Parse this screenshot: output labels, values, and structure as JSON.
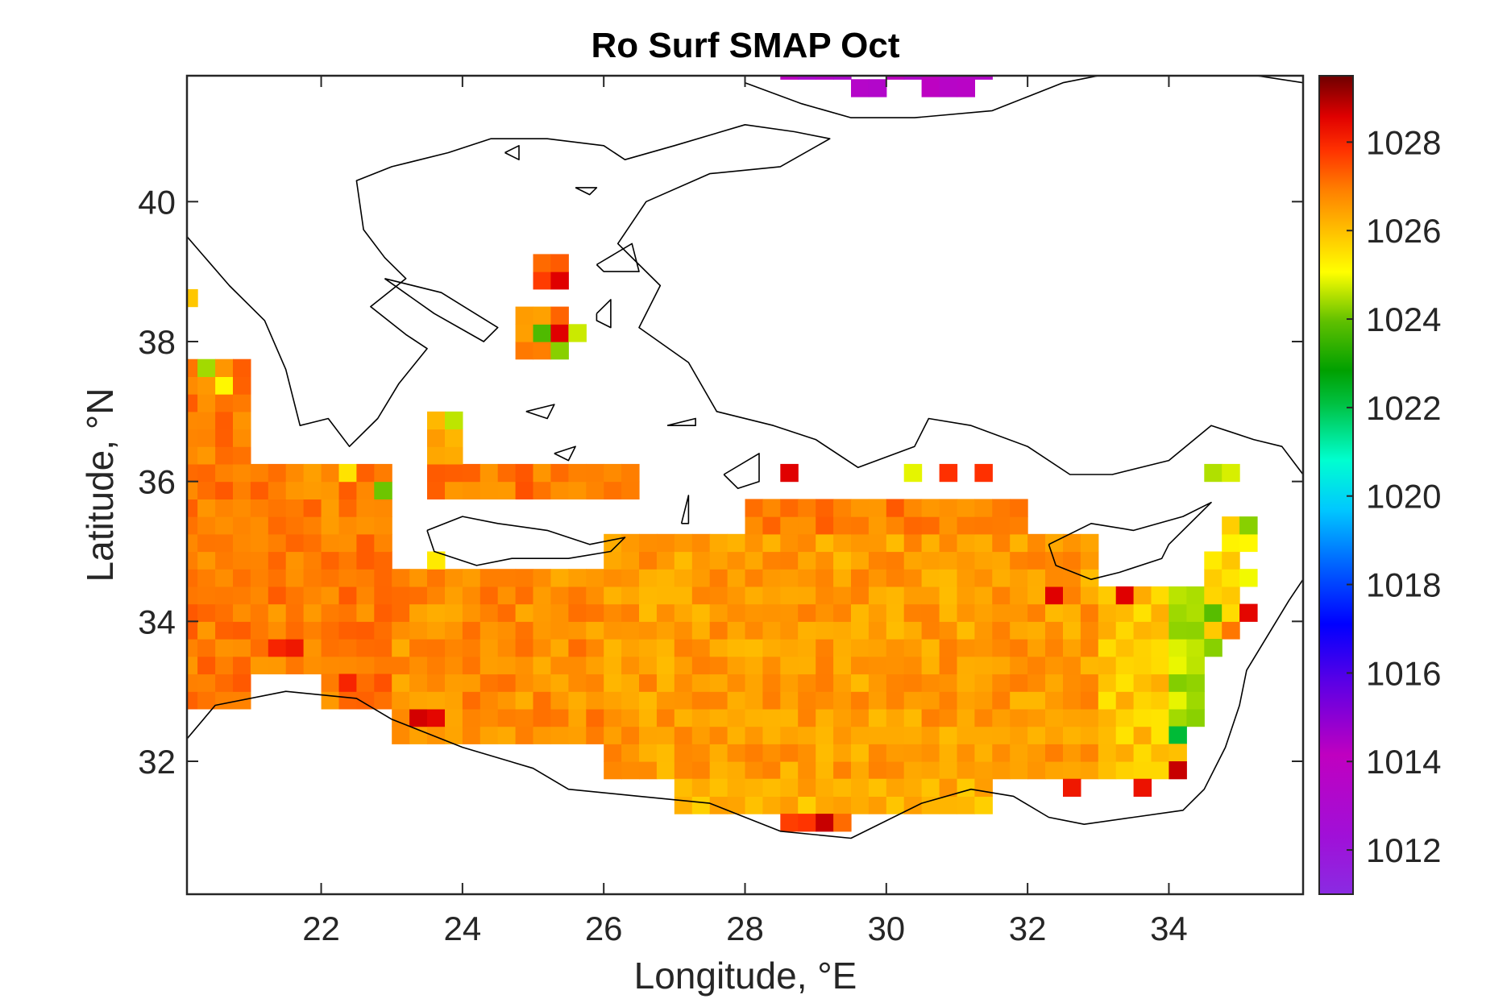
{
  "chart_data": {
    "type": "heatmap",
    "title": "Ro Surf SMAP Oct",
    "xlabel": "Longitude, °E",
    "ylabel": "Latitude, °N",
    "xlim": [
      20.1,
      35.9
    ],
    "ylim": [
      30.1,
      41.8
    ],
    "xticks": [
      "22",
      "24",
      "26",
      "28",
      "30",
      "32",
      "34"
    ],
    "xtick_values": [
      22,
      24,
      26,
      28,
      30,
      32,
      34
    ],
    "yticks": [
      "32",
      "34",
      "36",
      "38",
      "40"
    ],
    "ytick_values": [
      32,
      34,
      36,
      38,
      40
    ],
    "cell_size_deg": 0.25,
    "colorbar": {
      "min": 1011,
      "max": 1029.5,
      "colormap": "jet-like, purple→blue→cyan→green→yellow→orange→red→dark red",
      "ticks": [
        "1012",
        "1014",
        "1016",
        "1018",
        "1020",
        "1022",
        "1024",
        "1026",
        "1028"
      ],
      "tick_values": [
        1012,
        1014,
        1016,
        1018,
        1020,
        1022,
        1024,
        1026,
        1028
      ]
    },
    "typical_values": {
      "eastern_mediterranean_open_sea": 1026.8,
      "levantine_coast_near_34E": 1024.5,
      "black_sea_edge_top": 1013.5
    },
    "regions": [
      {
        "lon": [
          20.0,
          21.0
        ],
        "lat": [
          32.75,
          33.75
        ],
        "value": 1026.9
      },
      {
        "lon": [
          20.0,
          21.0
        ],
        "lat": [
          33.75,
          37.75
        ],
        "value": 1027.0
      },
      {
        "lon": [
          21.0,
          23.0
        ],
        "lat": [
          33.25,
          36.25
        ],
        "value": 1026.9
      },
      {
        "lon": [
          22.0,
          23.0
        ],
        "lat": [
          32.75,
          33.25
        ],
        "value": 1027.0
      },
      {
        "lon": [
          23.0,
          26.0
        ],
        "lat": [
          32.25,
          34.75
        ],
        "value": 1026.7
      },
      {
        "lon": [
          26.0,
          33.0
        ],
        "lat": [
          31.75,
          35.25
        ],
        "value": 1026.5
      },
      {
        "lon": [
          27.0,
          31.5
        ],
        "lat": [
          31.25,
          31.75
        ],
        "value": 1026.2
      },
      {
        "lon": [
          28.5,
          29.5
        ],
        "lat": [
          31.0,
          31.25
        ],
        "value": 1027.5
      },
      {
        "lon": [
          28.0,
          32.0
        ],
        "lat": [
          35.25,
          35.75
        ],
        "value": 1026.9
      },
      {
        "lon": [
          23.5,
          26.5
        ],
        "lat": [
          35.75,
          36.25
        ],
        "value": 1027.0
      },
      {
        "lon": [
          23.5,
          24.0
        ],
        "lat": [
          36.25,
          37.0
        ],
        "value": 1026.5
      },
      {
        "lon": [
          33.0,
          34.0
        ],
        "lat": [
          31.75,
          34.5
        ],
        "value": 1025.9
      },
      {
        "lon": [
          34.0,
          34.5
        ],
        "lat": [
          32.5,
          34.5
        ],
        "value": 1024.6
      },
      {
        "lon": [
          34.5,
          35.0
        ],
        "lat": [
          33.75,
          35.0
        ],
        "value": 1025.6
      },
      {
        "lon": [
          34.75,
          35.25
        ],
        "lat": [
          35.0,
          35.5
        ],
        "value": 1025.6
      },
      {
        "lon": [
          25.0,
          25.5
        ],
        "lat": [
          38.75,
          39.25
        ],
        "value": 1027.3
      },
      {
        "lon": [
          24.75,
          25.5
        ],
        "lat": [
          37.75,
          38.5
        ],
        "value": 1026.8
      },
      {
        "lon": [
          28.5,
          29.5
        ],
        "lat": [
          41.75,
          41.85
        ],
        "value": 1013.5
      },
      {
        "lon": [
          30.0,
          31.5
        ],
        "lat": [
          41.75,
          41.85
        ],
        "value": 1013.8
      },
      {
        "lon": [
          29.5,
          30.0
        ],
        "lat": [
          41.5,
          41.75
        ],
        "value": 1013.5
      },
      {
        "lon": [
          30.5,
          31.25
        ],
        "lat": [
          41.5,
          41.75
        ],
        "value": 1013.6
      }
    ],
    "spot_values": [
      {
        "lon": 34.0,
        "lat": 32.25,
        "value": 1022.2
      },
      {
        "lon": 34.0,
        "lat": 32.5,
        "value": 1024.4
      },
      {
        "lon": 34.0,
        "lat": 32.0,
        "value": 1026.0
      },
      {
        "lon": 34.0,
        "lat": 31.75,
        "value": 1028.8
      },
      {
        "lon": 34.5,
        "lat": 34.0,
        "value": 1023.8
      },
      {
        "lon": 34.5,
        "lat": 36.0,
        "value": 1024.5
      },
      {
        "lon": 34.75,
        "lat": 36.0,
        "value": 1024.8
      },
      {
        "lon": 35.0,
        "lat": 35.25,
        "value": 1024.2
      },
      {
        "lon": 35.0,
        "lat": 34.0,
        "value": 1028.5
      },
      {
        "lon": 34.75,
        "lat": 33.75,
        "value": 1027.0
      },
      {
        "lon": 20.25,
        "lat": 37.5,
        "value": 1024.4
      },
      {
        "lon": 20.5,
        "lat": 37.25,
        "value": 1025.2
      },
      {
        "lon": 22.75,
        "lat": 35.75,
        "value": 1024.0
      },
      {
        "lon": 22.25,
        "lat": 36.0,
        "value": 1025.5
      },
      {
        "lon": 23.75,
        "lat": 36.75,
        "value": 1024.6
      },
      {
        "lon": 23.25,
        "lat": 32.5,
        "value": 1028.7
      },
      {
        "lon": 23.5,
        "lat": 32.5,
        "value": 1028.5
      },
      {
        "lon": 21.25,
        "lat": 33.5,
        "value": 1028.0
      },
      {
        "lon": 21.5,
        "lat": 33.5,
        "value": 1028.2
      },
      {
        "lon": 22.25,
        "lat": 33.0,
        "value": 1028.0
      },
      {
        "lon": 23.5,
        "lat": 34.75,
        "value": 1025.4
      },
      {
        "lon": 25.0,
        "lat": 38.0,
        "value": 1023.7
      },
      {
        "lon": 25.5,
        "lat": 38.0,
        "value": 1024.7
      },
      {
        "lon": 25.25,
        "lat": 37.75,
        "value": 1024.2
      },
      {
        "lon": 25.25,
        "lat": 38.0,
        "value": 1028.6
      },
      {
        "lon": 25.25,
        "lat": 38.75,
        "value": 1028.6
      },
      {
        "lon": 20.0,
        "lat": 38.5,
        "value": 1025.9
      },
      {
        "lon": 28.5,
        "lat": 36.0,
        "value": 1028.6
      },
      {
        "lon": 29.0,
        "lat": 31.0,
        "value": 1028.8
      },
      {
        "lon": 30.25,
        "lat": 36.0,
        "value": 1024.9
      },
      {
        "lon": 30.75,
        "lat": 36.0,
        "value": 1027.8
      },
      {
        "lon": 31.25,
        "lat": 36.0,
        "value": 1027.8
      },
      {
        "lon": 32.25,
        "lat": 34.25,
        "value": 1028.6
      },
      {
        "lon": 33.25,
        "lat": 34.25,
        "value": 1028.6
      },
      {
        "lon": 32.5,
        "lat": 31.5,
        "value": 1028.2
      },
      {
        "lon": 33.5,
        "lat": 31.5,
        "value": 1028.3
      },
      {
        "lon": 35.0,
        "lat": 34.5,
        "value": 1025.0
      },
      {
        "lon": 34.5,
        "lat": 33.5,
        "value": 1024.2
      }
    ],
    "coastlines": [
      {
        "name": "libya-egypt-israel-lebanon-turkey",
        "points": [
          [
            20.0,
            32.2
          ],
          [
            20.5,
            32.8
          ],
          [
            21.5,
            33.0
          ],
          [
            22.5,
            32.9
          ],
          [
            23.0,
            32.6
          ],
          [
            24.0,
            32.2
          ],
          [
            25.0,
            31.9
          ],
          [
            25.5,
            31.6
          ],
          [
            26.5,
            31.5
          ],
          [
            27.5,
            31.4
          ],
          [
            28.5,
            31.0
          ],
          [
            29.5,
            30.9
          ],
          [
            30.5,
            31.4
          ],
          [
            31.2,
            31.6
          ],
          [
            31.8,
            31.5
          ],
          [
            32.3,
            31.2
          ],
          [
            32.8,
            31.1
          ],
          [
            33.5,
            31.2
          ],
          [
            34.2,
            31.3
          ],
          [
            34.5,
            31.6
          ],
          [
            34.8,
            32.2
          ],
          [
            35.0,
            32.8
          ],
          [
            35.1,
            33.3
          ],
          [
            35.4,
            33.8
          ],
          [
            35.7,
            34.3
          ],
          [
            35.9,
            34.6
          ]
        ]
      },
      {
        "name": "turkey-south-coast",
        "points": [
          [
            35.9,
            36.1
          ],
          [
            35.6,
            36.5
          ],
          [
            35.2,
            36.6
          ],
          [
            34.6,
            36.8
          ],
          [
            34.0,
            36.3
          ],
          [
            33.2,
            36.1
          ],
          [
            32.6,
            36.1
          ],
          [
            32.0,
            36.5
          ],
          [
            31.2,
            36.8
          ],
          [
            30.6,
            36.9
          ],
          [
            30.4,
            36.5
          ],
          [
            29.6,
            36.2
          ],
          [
            29.0,
            36.6
          ],
          [
            28.4,
            36.8
          ],
          [
            27.6,
            37.0
          ],
          [
            27.2,
            37.7
          ],
          [
            26.5,
            38.2
          ],
          [
            26.8,
            38.8
          ],
          [
            26.2,
            39.4
          ],
          [
            26.6,
            40.0
          ],
          [
            27.5,
            40.4
          ],
          [
            28.5,
            40.5
          ],
          [
            29.2,
            40.9
          ],
          [
            28.7,
            41.0
          ],
          [
            28.0,
            41.1
          ],
          [
            27.0,
            40.8
          ],
          [
            26.3,
            40.6
          ],
          [
            26.0,
            40.8
          ],
          [
            25.2,
            40.9
          ],
          [
            24.4,
            40.9
          ],
          [
            23.8,
            40.7
          ],
          [
            23.0,
            40.5
          ],
          [
            22.5,
            40.3
          ],
          [
            22.6,
            39.6
          ],
          [
            22.9,
            39.2
          ],
          [
            23.2,
            38.9
          ],
          [
            22.7,
            38.5
          ],
          [
            23.2,
            38.1
          ],
          [
            23.5,
            37.9
          ],
          [
            23.1,
            37.4
          ],
          [
            22.8,
            36.9
          ],
          [
            22.4,
            36.5
          ],
          [
            22.1,
            36.9
          ],
          [
            21.7,
            36.8
          ],
          [
            21.5,
            37.6
          ],
          [
            21.2,
            38.3
          ],
          [
            20.7,
            38.8
          ],
          [
            20.1,
            39.5
          ],
          [
            20.0,
            39.8
          ]
        ]
      },
      {
        "name": "crete",
        "points": [
          [
            23.5,
            35.3
          ],
          [
            24.0,
            35.5
          ],
          [
            24.5,
            35.4
          ],
          [
            25.2,
            35.3
          ],
          [
            25.8,
            35.1
          ],
          [
            26.3,
            35.2
          ],
          [
            26.1,
            35.0
          ],
          [
            25.5,
            34.9
          ],
          [
            24.7,
            34.9
          ],
          [
            24.2,
            34.8
          ],
          [
            23.6,
            35.0
          ],
          [
            23.5,
            35.3
          ]
        ]
      },
      {
        "name": "cyprus",
        "points": [
          [
            32.3,
            35.1
          ],
          [
            32.9,
            35.4
          ],
          [
            33.5,
            35.3
          ],
          [
            34.2,
            35.5
          ],
          [
            34.6,
            35.7
          ],
          [
            34.0,
            35.1
          ],
          [
            33.9,
            34.9
          ],
          [
            33.3,
            34.7
          ],
          [
            32.9,
            34.6
          ],
          [
            32.4,
            34.8
          ],
          [
            32.3,
            35.1
          ]
        ]
      },
      {
        "name": "black-sea-coast",
        "points": [
          [
            28.0,
            41.7
          ],
          [
            28.8,
            41.4
          ],
          [
            29.5,
            41.2
          ],
          [
            30.4,
            41.2
          ],
          [
            31.5,
            41.3
          ],
          [
            32.5,
            41.7
          ],
          [
            33.5,
            41.9
          ],
          [
            34.6,
            41.9
          ],
          [
            35.9,
            41.7
          ]
        ]
      },
      {
        "name": "rhodes",
        "points": [
          [
            27.7,
            36.1
          ],
          [
            28.2,
            36.4
          ],
          [
            28.2,
            36.0
          ],
          [
            27.9,
            35.9
          ],
          [
            27.7,
            36.1
          ]
        ]
      },
      {
        "name": "lesvos",
        "points": [
          [
            25.9,
            39.1
          ],
          [
            26.4,
            39.4
          ],
          [
            26.5,
            39.0
          ],
          [
            26.0,
            39.0
          ],
          [
            25.9,
            39.1
          ]
        ]
      },
      {
        "name": "chios",
        "points": [
          [
            25.9,
            38.4
          ],
          [
            26.1,
            38.6
          ],
          [
            26.1,
            38.2
          ],
          [
            25.9,
            38.3
          ],
          [
            25.9,
            38.4
          ]
        ]
      },
      {
        "name": "evia",
        "points": [
          [
            22.9,
            38.9
          ],
          [
            23.7,
            38.7
          ],
          [
            24.5,
            38.2
          ],
          [
            24.3,
            38.0
          ],
          [
            23.6,
            38.4
          ],
          [
            22.9,
            38.9
          ]
        ]
      },
      {
        "name": "kos",
        "points": [
          [
            26.9,
            36.8
          ],
          [
            27.3,
            36.9
          ],
          [
            27.3,
            36.8
          ],
          [
            26.9,
            36.8
          ]
        ]
      },
      {
        "name": "cyclades-1",
        "points": [
          [
            24.9,
            37.0
          ],
          [
            25.3,
            37.1
          ],
          [
            25.2,
            36.9
          ],
          [
            24.9,
            37.0
          ]
        ]
      },
      {
        "name": "cyclades-2",
        "points": [
          [
            25.3,
            36.4
          ],
          [
            25.6,
            36.5
          ],
          [
            25.5,
            36.3
          ],
          [
            25.3,
            36.4
          ]
        ]
      },
      {
        "name": "karpathos",
        "points": [
          [
            27.1,
            35.4
          ],
          [
            27.2,
            35.8
          ],
          [
            27.2,
            35.4
          ],
          [
            27.1,
            35.4
          ]
        ]
      },
      {
        "name": "thasos",
        "points": [
          [
            24.6,
            40.7
          ],
          [
            24.8,
            40.8
          ],
          [
            24.8,
            40.6
          ],
          [
            24.6,
            40.7
          ]
        ]
      },
      {
        "name": "imbros",
        "points": [
          [
            25.6,
            40.2
          ],
          [
            25.9,
            40.2
          ],
          [
            25.8,
            40.1
          ],
          [
            25.6,
            40.2
          ]
        ]
      }
    ]
  }
}
